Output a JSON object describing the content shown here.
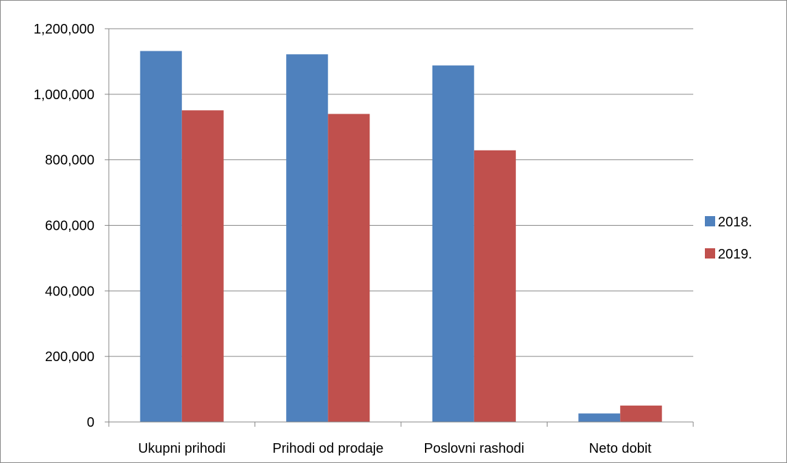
{
  "chart_data": {
    "type": "bar",
    "title": "",
    "xlabel": "",
    "ylabel": "",
    "categories": [
      "Ukupni prihodi",
      "Prihodi od prodaje",
      "Poslovni rashodi",
      "Neto dobit"
    ],
    "series": [
      {
        "name": "2018.",
        "color": "#4F81BD",
        "values": [
          1132000,
          1122000,
          1088000,
          26000
        ]
      },
      {
        "name": "2019.",
        "color": "#C0504D",
        "values": [
          951000,
          940000,
          829000,
          50000
        ]
      }
    ],
    "ylim": [
      0,
      1200000
    ],
    "yticks": [
      0,
      200000,
      400000,
      600000,
      800000,
      1000000,
      1200000
    ],
    "ytick_labels": [
      "0",
      "200,000",
      "400,000",
      "600,000",
      "800,000",
      "1,000,000",
      "1,200,000"
    ],
    "grid": true,
    "legend_position": "right"
  }
}
